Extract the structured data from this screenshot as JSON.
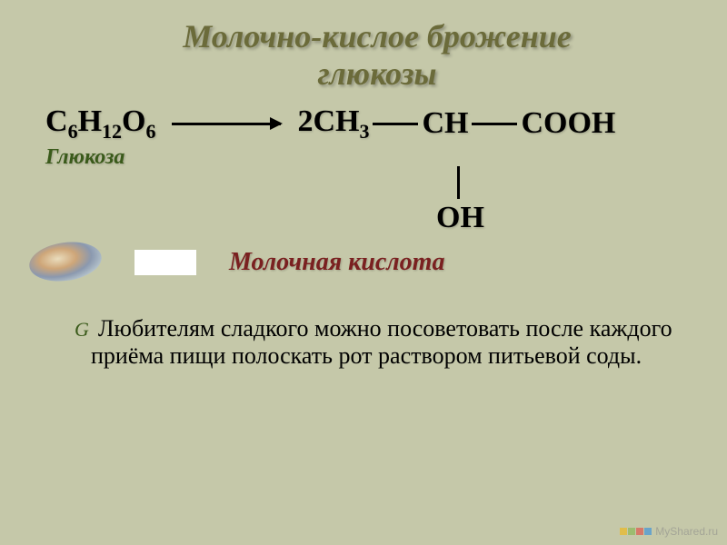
{
  "title_line1": "Молочно-кислое брожение",
  "title_line2": "глюкозы",
  "equation": {
    "left_formula_parts": [
      "С",
      "6",
      "Н",
      "12",
      "О",
      "6"
    ],
    "right_part1_parts": [
      "2СН",
      "3"
    ],
    "right_part2": "СН",
    "right_part3": "СООН",
    "oh": "ОН"
  },
  "labels": {
    "glucose": "Глюкоза",
    "lactic_acid": "Молочная кислота"
  },
  "body": "Любителям сладкого можно посоветовать после каждого приёма пищи полоскать рот раствором питьевой соды.",
  "bullet": "G",
  "watermark": "MyShared.ru",
  "colors": {
    "background": "#c5c8a9",
    "title": "#6b6b3a",
    "green_label": "#3a5a1a",
    "red_label": "#7a2020",
    "text": "#000000",
    "wm_yellow": "#f7b500",
    "wm_green": "#7cb342",
    "wm_red": "#e53935",
    "wm_blue": "#1e88e5"
  }
}
